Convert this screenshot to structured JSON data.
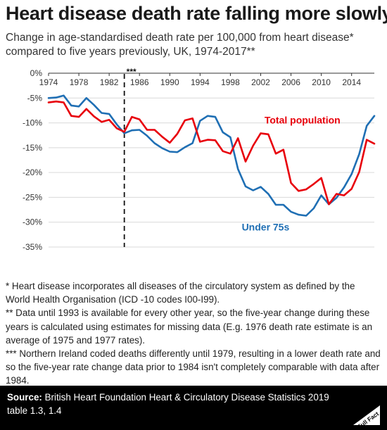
{
  "title": "Heart disease death rate falling more slowly",
  "subtitle": "Change in age-standardised death rate per 100,000 from heart disease* compared to five years previously, UK, 1974-2017**",
  "notes": [
    "* Heart disease incorporates all diseases of the circulatory system as defined by the World Health Organisation (ICD -10 codes I00-I99).",
    "** Data until 1993 is available for every other year, so the five-year change during these years is calculated using estimates for missing data (E.g. 1976 death rate estimate is an average of 1975 and 1977 rates).",
    "*** Northern Ireland coded deaths differently until 1979, resulting in a lower death rate and so the five-year rate change data prior to 1984 isn't completely comparable with data after 1984."
  ],
  "footer": {
    "source_label": "Source:",
    "source_text": " British Heart Foundation Heart & Circulatory Disease Statistics 2019 table 1.3, 1.4",
    "logo_text": "Full Fact"
  },
  "colors": {
    "total": "#e8000b",
    "under75": "#1f6fb4",
    "text": "#222222",
    "grid": "#d9d9d9"
  },
  "chart_data": {
    "type": "line",
    "title": "Heart disease death rate falling more slowly",
    "xlabel": "",
    "ylabel": "",
    "xlim": [
      1974,
      2017
    ],
    "ylim": [
      -35,
      0
    ],
    "x_ticks": [
      1974,
      1978,
      1982,
      1986,
      1990,
      1994,
      1998,
      2002,
      2006,
      2010,
      2014
    ],
    "y_ticks": [
      0,
      -5,
      -10,
      -15,
      -20,
      -25,
      -30,
      -35
    ],
    "y_tick_suffix": "%",
    "grid": "horizontal",
    "annotations": [
      {
        "x": 1984,
        "text": "***",
        "style": "dashed-vertical-line"
      }
    ],
    "x": [
      1974,
      1975,
      1976,
      1977,
      1978,
      1979,
      1980,
      1981,
      1982,
      1983,
      1984,
      1985,
      1986,
      1987,
      1988,
      1989,
      1990,
      1991,
      1992,
      1993,
      1994,
      1995,
      1996,
      1997,
      1998,
      1999,
      2000,
      2001,
      2002,
      2003,
      2004,
      2005,
      2006,
      2007,
      2008,
      2009,
      2010,
      2011,
      2012,
      2013,
      2014,
      2015,
      2016,
      2017
    ],
    "series": [
      {
        "name": "Total population",
        "color": "#e8000b",
        "label_position": {
          "x": 2002.5,
          "y": -10.1
        },
        "values": [
          -5.9,
          -5.7,
          -5.9,
          -8.6,
          -8.8,
          -7.2,
          -8.7,
          -9.8,
          -9.4,
          -11.1,
          -11.8,
          -8.8,
          -9.3,
          -11.4,
          -11.4,
          -12.8,
          -14.0,
          -12.2,
          -9.5,
          -9.1,
          -13.8,
          -13.4,
          -13.5,
          -15.7,
          -16.2,
          -13.1,
          -17.8,
          -14.6,
          -12.1,
          -12.3,
          -16.2,
          -15.4,
          -22.1,
          -23.7,
          -23.4,
          -22.3,
          -21.1,
          -26.4,
          -24.3,
          -24.6,
          -23.3,
          -19.9,
          -13.4,
          -14.2
        ]
      },
      {
        "name": "Under 75s",
        "color": "#1f6fb4",
        "label_position": {
          "x": 1999.5,
          "y": -31.7
        },
        "values": [
          -5.0,
          -4.9,
          -4.5,
          -6.5,
          -6.7,
          -5.0,
          -6.4,
          -8.0,
          -8.2,
          -10.3,
          -12.1,
          -11.5,
          -11.4,
          -12.6,
          -14.1,
          -15.1,
          -15.8,
          -15.9,
          -14.9,
          -14.1,
          -9.6,
          -8.6,
          -8.8,
          -11.9,
          -12.9,
          -19.3,
          -22.8,
          -23.6,
          -22.9,
          -24.3,
          -26.5,
          -26.5,
          -27.9,
          -28.5,
          -28.7,
          -27.2,
          -24.6,
          -26.4,
          -25.1,
          -23.0,
          -20.3,
          -16.3,
          -10.6,
          -8.6
        ]
      }
    ]
  }
}
